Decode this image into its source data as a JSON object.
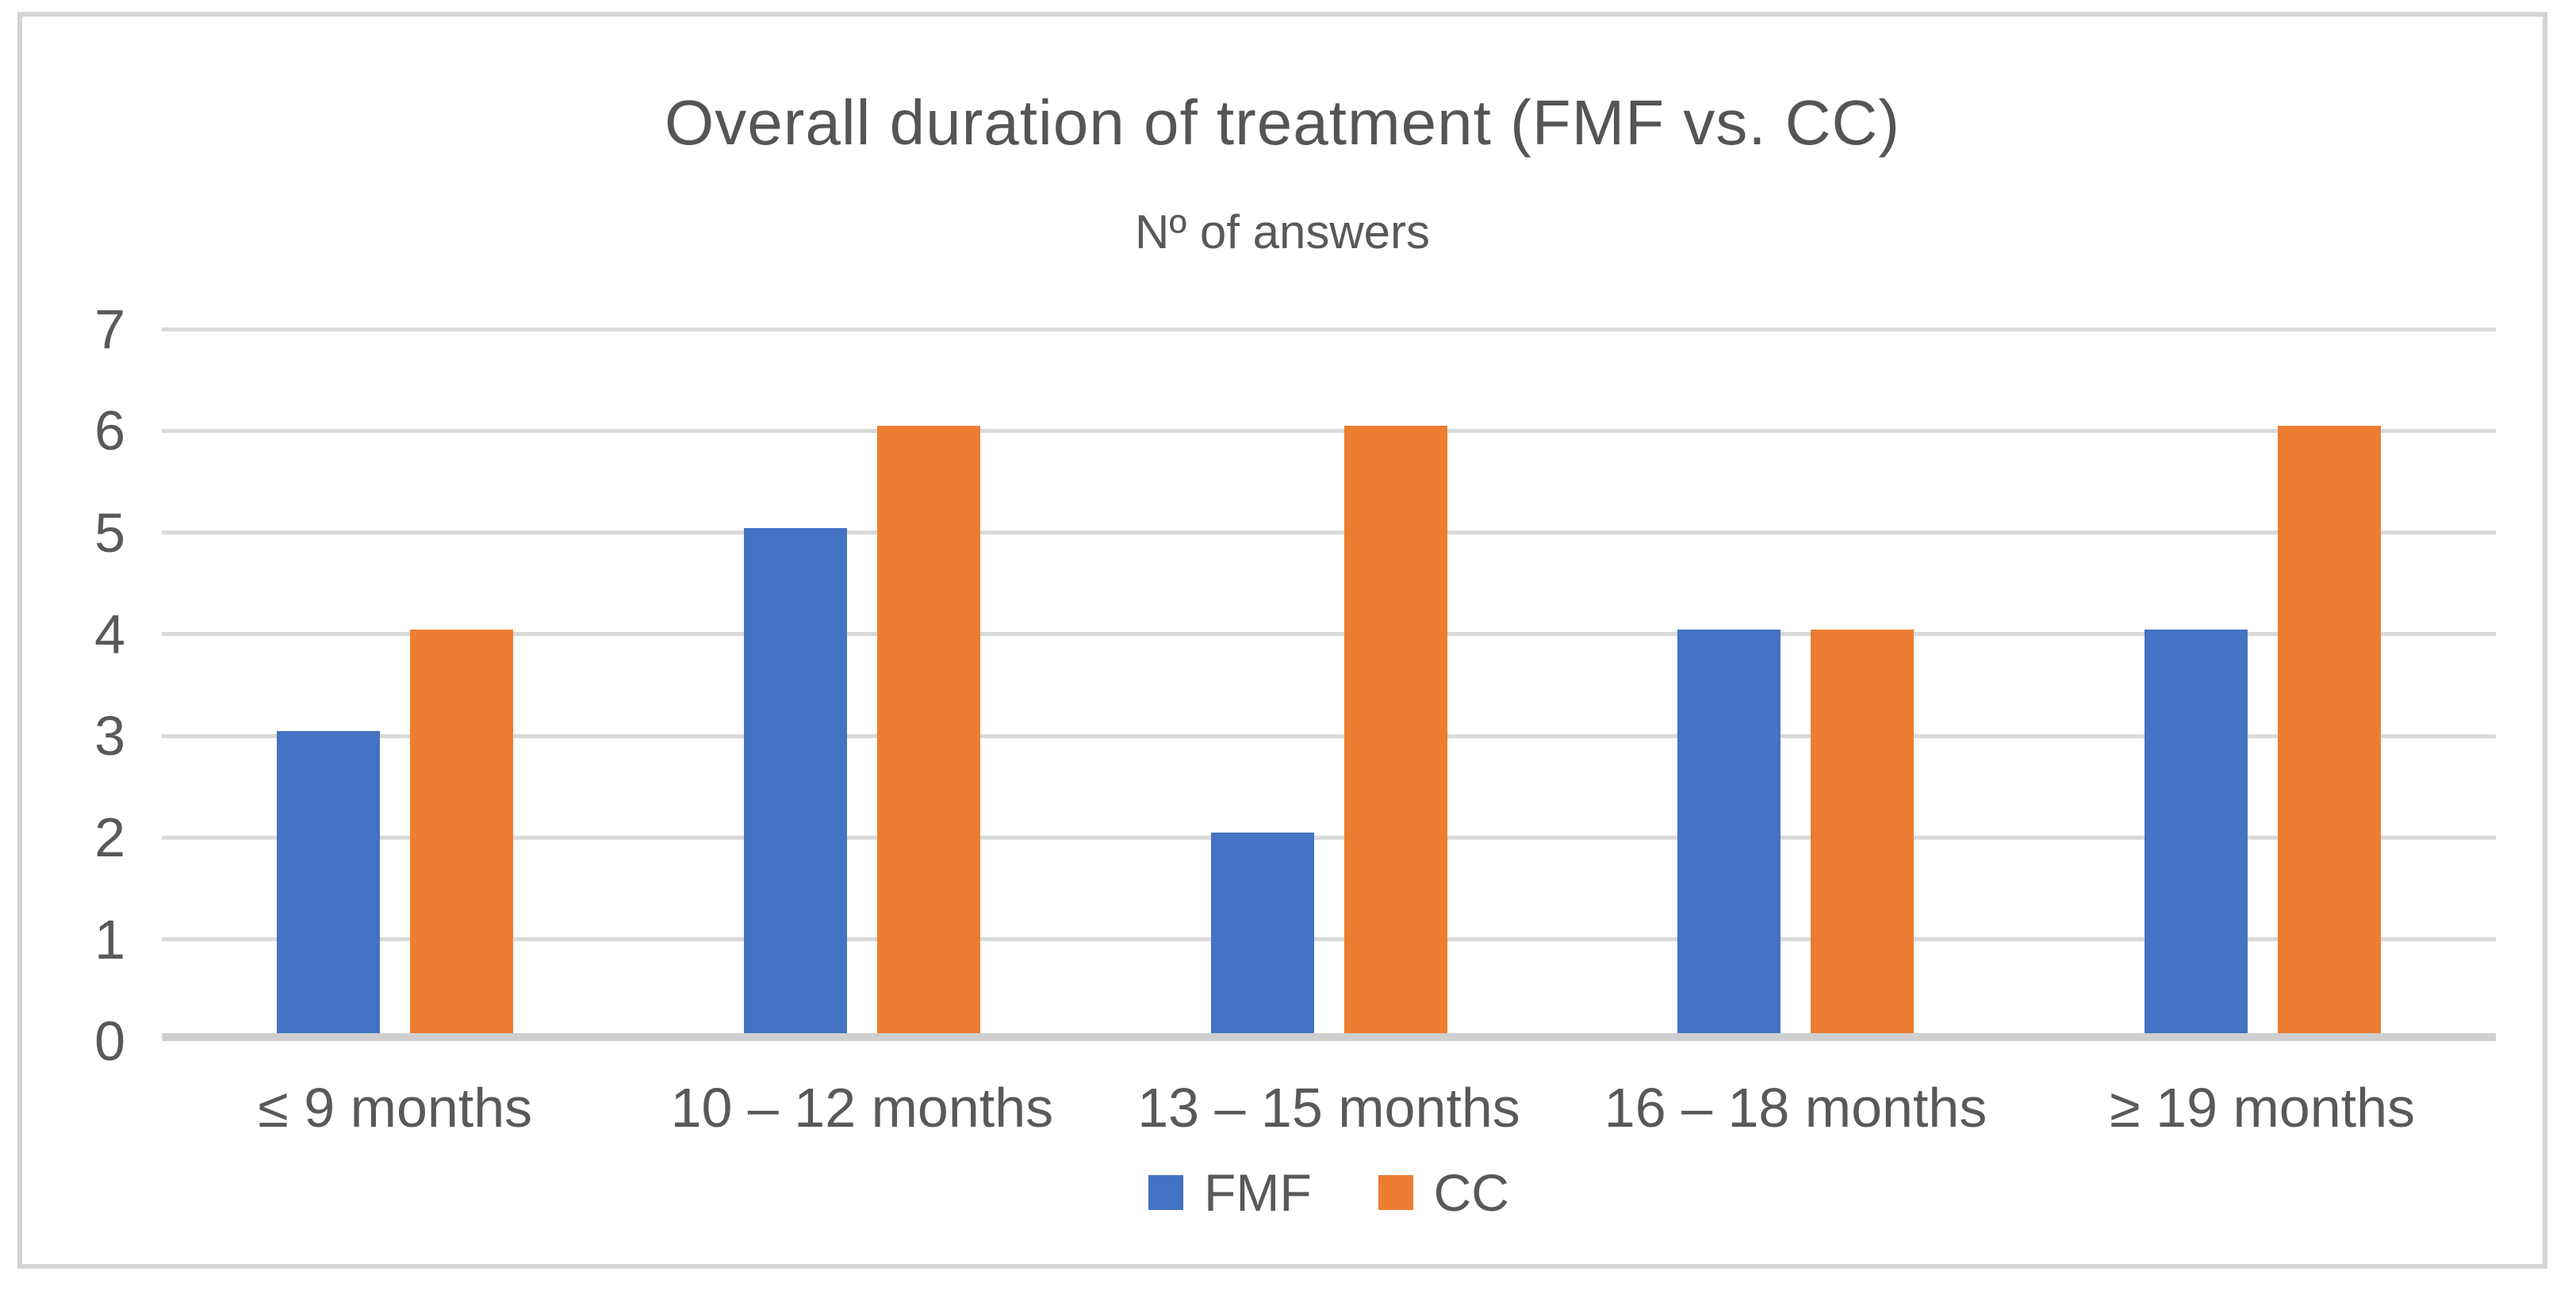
{
  "chart_data": {
    "type": "bar",
    "title": "Overall duration of treatment (FMF vs. CC)",
    "subtitle": "Nº of answers",
    "categories": [
      "≤ 9 months",
      "10 – 12 months",
      "13 – 15 months",
      "16 – 18 months",
      "≥ 19 months"
    ],
    "series": [
      {
        "name": "FMF",
        "color": "#4472C4",
        "values": [
          3,
          5,
          2,
          4,
          4
        ]
      },
      {
        "name": "CC",
        "color": "#ED7D31",
        "values": [
          4,
          6,
          6,
          4,
          6
        ]
      }
    ],
    "xlabel": "",
    "ylabel": "",
    "ylim": [
      0,
      7
    ],
    "yticks": [
      0,
      1,
      2,
      3,
      4,
      5,
      6,
      7
    ],
    "grid": true,
    "legend_position": "bottom"
  },
  "colors": {
    "background": "#ffffff",
    "frame_border": "#d4d4d4",
    "gridline": "#d9d9d9",
    "axis_line": "#cfcfcf",
    "title_text": "#555555",
    "tick_text": "#595959"
  }
}
